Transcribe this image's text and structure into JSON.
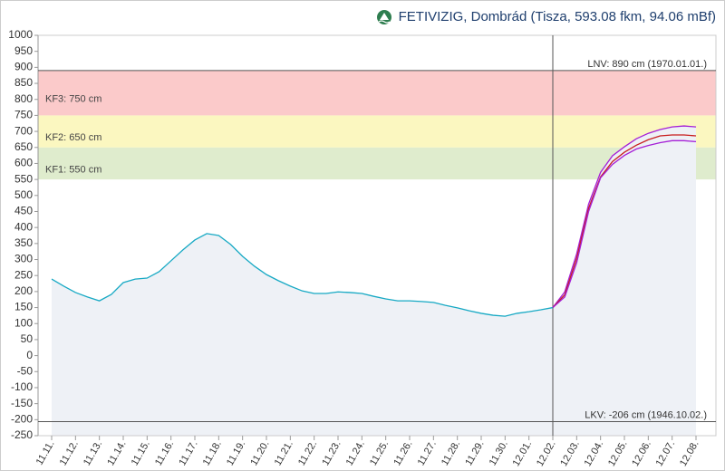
{
  "chart_data": {
    "type": "line",
    "title": "FETIVIZIG, Dombrád (Tisza, 593.08 fkm, 94.06 mBf)",
    "categories": [
      "11.11.",
      null,
      "11.12.",
      null,
      "11.13.",
      null,
      "11.14.",
      null,
      "11.15.",
      null,
      "11.16.",
      null,
      "11.17.",
      null,
      "11.18.",
      null,
      "11.19.",
      null,
      "11.20.",
      null,
      "11.21.",
      null,
      "11.22.",
      null,
      "11.23.",
      null,
      "11.24.",
      null,
      "11.25.",
      null,
      "11.26.",
      null,
      "11.27.",
      null,
      "11.28.",
      null,
      "11.29.",
      null,
      "11.30.",
      null,
      "12.01.",
      null,
      "12.02.",
      null,
      "12.03.",
      null,
      "12.04.",
      null,
      "12.05.",
      null,
      "12.06.",
      null,
      "12.07.",
      null,
      "12.08."
    ],
    "series": [
      {
        "color": "#17a9c4",
        "values": [
          239,
          217,
          197,
          183,
          171,
          191,
          228,
          239,
          242,
          262,
          296,
          330,
          361,
          381,
          375,
          347,
          310,
          279,
          253,
          234,
          217,
          202,
          194,
          194,
          199,
          197,
          194,
          185,
          177,
          171,
          171,
          169,
          166,
          157,
          149,
          140,
          132,
          126,
          123,
          132,
          137,
          143,
          150,
          null,
          null,
          null,
          null,
          null,
          null,
          null,
          null,
          null,
          null,
          null,
          null
        ]
      },
      {
        "color": "#a51fd6",
        "values": [
          null,
          null,
          null,
          null,
          null,
          null,
          null,
          null,
          null,
          null,
          null,
          null,
          null,
          null,
          null,
          null,
          null,
          null,
          null,
          null,
          null,
          null,
          null,
          null,
          null,
          null,
          null,
          null,
          null,
          null,
          null,
          null,
          null,
          null,
          null,
          null,
          null,
          null,
          null,
          null,
          null,
          null,
          150,
          199,
          318,
          473,
          572,
          624,
          652,
          677,
          694,
          706,
          714,
          717,
          714
        ]
      },
      {
        "color": "#c81e1e",
        "values": [
          null,
          null,
          null,
          null,
          null,
          null,
          null,
          null,
          null,
          null,
          null,
          null,
          null,
          null,
          null,
          null,
          null,
          null,
          null,
          null,
          null,
          null,
          null,
          null,
          null,
          null,
          null,
          null,
          null,
          null,
          null,
          null,
          null,
          null,
          null,
          null,
          null,
          null,
          null,
          null,
          null,
          null,
          150,
          190,
          304,
          460,
          558,
          606,
          635,
          657,
          674,
          686,
          689,
          689,
          686
        ]
      },
      {
        "color": "#a51fd6",
        "values": [
          null,
          null,
          null,
          null,
          null,
          null,
          null,
          null,
          null,
          null,
          null,
          null,
          null,
          null,
          null,
          null,
          null,
          null,
          null,
          null,
          null,
          null,
          null,
          null,
          null,
          null,
          null,
          null,
          null,
          null,
          null,
          null,
          null,
          null,
          null,
          null,
          null,
          null,
          null,
          null,
          null,
          null,
          150,
          183,
          290,
          450,
          555,
          597,
          625,
          645,
          656,
          665,
          671,
          671,
          668
        ]
      }
    ],
    "ylim": [
      -250,
      1000
    ],
    "yticks": [
      -250,
      -200,
      -150,
      -100,
      -50,
      0,
      50,
      100,
      150,
      200,
      250,
      300,
      350,
      400,
      450,
      500,
      550,
      600,
      650,
      700,
      750,
      800,
      850,
      900,
      950,
      1000
    ],
    "bands": [
      {
        "label": "KF1: 550 cm",
        "from": 550,
        "to": 650,
        "color": "#dfeccd"
      },
      {
        "label": "KF2: 650 cm",
        "from": 650,
        "to": 750,
        "color": "#fbf7c0"
      },
      {
        "label": "KF3: 750 cm",
        "from": 750,
        "to": 890,
        "color": "#fbcaca"
      }
    ],
    "lines": [
      {
        "label": "LNV: 890 cm (1970.01.01.)",
        "value": 890
      },
      {
        "label": "LKV: -206 cm (1946.10.02.)",
        "value": -206
      }
    ],
    "vline": "12.02."
  }
}
